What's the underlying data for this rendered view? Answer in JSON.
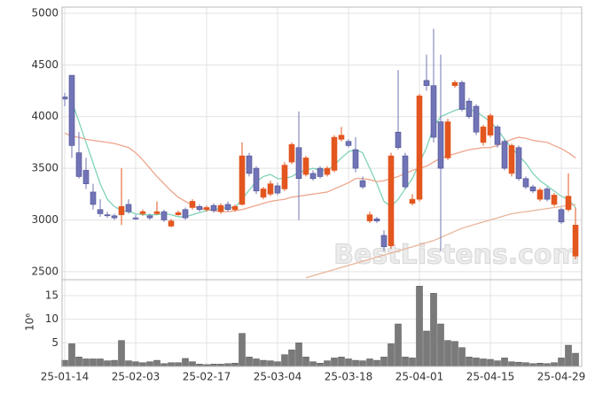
{
  "chart_data": {
    "type": "candlestick",
    "categories": [
      "25-01-14",
      null,
      null,
      null,
      null,
      null,
      null,
      null,
      null,
      null,
      "25-02-03",
      null,
      null,
      null,
      null,
      null,
      null,
      null,
      null,
      null,
      "25-02-17",
      null,
      null,
      null,
      null,
      null,
      null,
      null,
      null,
      null,
      "25-03-04",
      null,
      null,
      null,
      null,
      null,
      null,
      null,
      null,
      null,
      "25-03-18",
      null,
      null,
      null,
      null,
      null,
      null,
      null,
      null,
      null,
      "25-04-01",
      null,
      null,
      null,
      null,
      null,
      null,
      null,
      null,
      null,
      "25-04-15",
      null,
      null,
      null,
      null,
      null,
      null,
      null,
      null,
      null,
      "25-04-29",
      null,
      null
    ],
    "open": [
      4190,
      4400,
      3650,
      3480,
      3270,
      3100,
      3050,
      3040,
      3050,
      3150,
      3020,
      3060,
      3040,
      3060,
      3080,
      2940,
      3050,
      3100,
      3120,
      3130,
      3100,
      3140,
      3080,
      3150,
      3100,
      3150,
      3620,
      3500,
      3220,
      3250,
      3330,
      3300,
      3560,
      3700,
      3440,
      3450,
      3500,
      3440,
      3480,
      3780,
      3760,
      3680,
      3380,
      2990,
      3010,
      2850,
      2750,
      3850,
      3620,
      3160,
      3200,
      4350,
      4300,
      3950,
      3600,
      4300,
      4330,
      4150,
      4100,
      3750,
      3820,
      3900,
      3760,
      3450,
      3700,
      3400,
      3320,
      3200,
      3300,
      3150,
      3100,
      3100,
      2650
    ],
    "high": [
      4230,
      4400,
      3850,
      3600,
      3350,
      3200,
      3080,
      3060,
      3500,
      3200,
      3050,
      3100,
      3060,
      3180,
      3100,
      3010,
      3090,
      3120,
      3200,
      3150,
      3140,
      3160,
      3160,
      3180,
      3150,
      3750,
      3650,
      3520,
      3320,
      3380,
      3360,
      3560,
      3750,
      4050,
      3620,
      3480,
      3520,
      3520,
      3820,
      3900,
      3780,
      3800,
      3420,
      3080,
      3030,
      2900,
      3650,
      4450,
      3650,
      3250,
      4220,
      4600,
      4850,
      4600,
      3980,
      4350,
      4350,
      4180,
      4120,
      3920,
      4030,
      3920,
      3780,
      3740,
      3720,
      3420,
      3340,
      3310,
      3320,
      3260,
      3120,
      3450,
      3120
    ],
    "low": [
      4100,
      3600,
      3400,
      3300,
      3100,
      3030,
      3020,
      3000,
      2950,
      3060,
      3000,
      3040,
      3000,
      3050,
      2980,
      2930,
      3040,
      3000,
      3100,
      3080,
      3080,
      3070,
      3060,
      3080,
      3080,
      3140,
      3420,
      3250,
      3200,
      3230,
      3240,
      3280,
      3540,
      3000,
      3420,
      3380,
      3400,
      3420,
      3460,
      3760,
      3700,
      3460,
      3300,
      2970,
      2970,
      2700,
      2720,
      3680,
      3300,
      3140,
      3180,
      4250,
      3750,
      2700,
      3580,
      4280,
      4050,
      3980,
      3820,
      3720,
      3800,
      3700,
      3480,
      3420,
      3380,
      3300,
      3260,
      3180,
      3180,
      3130,
      2960,
      3080,
      2620
    ],
    "close": [
      4170,
      3720,
      3420,
      3350,
      3150,
      3060,
      3040,
      3020,
      3130,
      3080,
      3010,
      3080,
      3020,
      3080,
      3000,
      2990,
      3070,
      3020,
      3180,
      3100,
      3120,
      3090,
      3140,
      3100,
      3130,
      3620,
      3450,
      3280,
      3300,
      3350,
      3260,
      3530,
      3730,
      3400,
      3600,
      3400,
      3420,
      3500,
      3800,
      3820,
      3720,
      3500,
      3320,
      3050,
      2990,
      2740,
      3620,
      3700,
      3320,
      3200,
      4200,
      4300,
      3800,
      3500,
      3950,
      4330,
      4070,
      4000,
      3850,
      3900,
      4010,
      3730,
      3500,
      3720,
      3400,
      3320,
      3280,
      3290,
      3200,
      3240,
      2980,
      3230,
      2950
    ],
    "up_color": "#e3561f",
    "down_color": "#7174b6",
    "lines": [
      {
        "color": "#7fd3b8",
        "values": [
          null,
          4150,
          3950,
          3750,
          3550,
          3350,
          3200,
          3130,
          3090,
          3080,
          3060,
          3050,
          3050,
          3050,
          3060,
          3050,
          3030,
          3030,
          3050,
          3070,
          3090,
          3100,
          3110,
          3120,
          3120,
          3200,
          3290,
          3370,
          3420,
          3440,
          3400,
          3400,
          3420,
          3460,
          3480,
          3500,
          3480,
          3480,
          3530,
          3600,
          3660,
          3680,
          3650,
          3500,
          3350,
          3180,
          3130,
          3200,
          3300,
          3400,
          3550,
          3700,
          3900,
          4000,
          4030,
          4060,
          4080,
          4070,
          4050,
          4000,
          3950,
          3880,
          3780,
          3700,
          3620,
          3550,
          3450,
          3380,
          3330,
          3280,
          3230,
          3200,
          3120
        ]
      },
      {
        "color": "#eea58c",
        "values": [
          3840,
          3810,
          3800,
          3780,
          3770,
          3760,
          3750,
          3740,
          3720,
          3700,
          3650,
          3580,
          3500,
          3420,
          3350,
          3280,
          3220,
          3180,
          3140,
          3110,
          3100,
          3090,
          3080,
          3080,
          3090,
          3100,
          3120,
          3140,
          3160,
          3180,
          3190,
          3200,
          3220,
          3230,
          3240,
          3250,
          3260,
          3270,
          3300,
          3330,
          3360,
          3400,
          3400,
          3390,
          3370,
          3380,
          3400,
          3420,
          3450,
          3480,
          3500,
          3520,
          3560,
          3600,
          3620,
          3640,
          3660,
          3680,
          3690,
          3700,
          3700,
          3720,
          3750,
          3780,
          3800,
          3790,
          3770,
          3760,
          3750,
          3720,
          3690,
          3650,
          3600
        ]
      },
      {
        "color": "#e8b59a",
        "values": [
          null,
          null,
          null,
          null,
          null,
          null,
          null,
          null,
          null,
          null,
          null,
          null,
          null,
          null,
          null,
          null,
          null,
          null,
          null,
          null,
          null,
          null,
          null,
          null,
          null,
          null,
          null,
          null,
          null,
          null,
          null,
          null,
          null,
          null,
          2440,
          2460,
          2480,
          2500,
          2520,
          2540,
          2560,
          2580,
          2600,
          2620,
          2640,
          2660,
          2680,
          2700,
          2720,
          2740,
          2760,
          2780,
          2800,
          2830,
          2860,
          2890,
          2920,
          2940,
          2960,
          2980,
          3000,
          3020,
          3040,
          3060,
          3070,
          3080,
          3090,
          3100,
          3110,
          3120,
          3130,
          3140,
          3150
        ]
      }
    ],
    "ylim": [
      2430,
      5060
    ],
    "yticks": [
      2500,
      3000,
      3500,
      4000,
      4500,
      5000
    ],
    "volume": [
      1.3,
      4.8,
      2,
      1.6,
      1.6,
      1.6,
      1.2,
      1.3,
      5.5,
      1.2,
      1,
      0.8,
      1,
      1.3,
      0.6,
      0.8,
      0.8,
      1.7,
      1,
      0.5,
      0.4,
      0.5,
      0.5,
      0.6,
      0.7,
      7,
      2,
      1.6,
      1.3,
      1.2,
      1,
      2.5,
      3.5,
      5,
      2,
      1,
      0.7,
      1.2,
      1.8,
      2,
      1.6,
      1.3,
      1.2,
      1.6,
      1.3,
      2,
      4.8,
      9,
      2,
      1.8,
      17,
      7.5,
      15.5,
      9,
      5.5,
      5.3,
      4,
      2,
      1.8,
      1.6,
      1.5,
      1.2,
      1.8,
      1,
      0.9,
      0.8,
      0.6,
      0.7,
      0.6,
      0.8,
      1.8,
      4.5,
      2.8
    ],
    "volume_color": "#7a7a7a",
    "y2lim": [
      0,
      18
    ],
    "y2ticks": [
      5,
      10,
      15
    ],
    "y2_label": "10⁶",
    "grid": true,
    "watermark": "BestListens.com"
  }
}
